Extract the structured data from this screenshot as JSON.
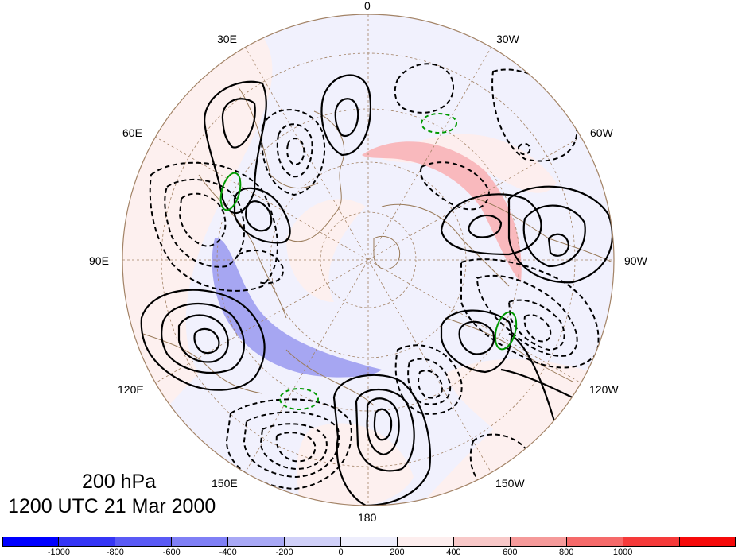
{
  "map": {
    "longitude_labels": {
      "lon_0": "0",
      "lon_30w": "30W",
      "lon_60w": "60W",
      "lon_90w": "90W",
      "lon_120w": "120W",
      "lon_150w": "150W",
      "lon_180": "180",
      "lon_150e": "150E",
      "lon_120e": "120E",
      "lon_90e": "90E",
      "lon_60e": "60E",
      "lon_30e": "30E"
    },
    "level": "200 hPa",
    "valid_time": "1200 UTC 21 Mar 2000",
    "contours": {
      "positive_color": "#000000",
      "negative_color": "#000000",
      "highlight_color": "#009900"
    }
  },
  "colorbar": {
    "colors": [
      "#0000ff",
      "#3535f5",
      "#5a5af5",
      "#7f7ff5",
      "#a8a8f5",
      "#d0d0f8",
      "#eeeefc",
      "#fdeeee",
      "#f8c8c8",
      "#f59a9a",
      "#f56a6a",
      "#f53a3a",
      "#f50a0a"
    ],
    "tick_labels": [
      "-1000",
      "-800",
      "-600",
      "-400",
      "-200",
      "0",
      "200",
      "400",
      "600",
      "800",
      "1000"
    ]
  }
}
